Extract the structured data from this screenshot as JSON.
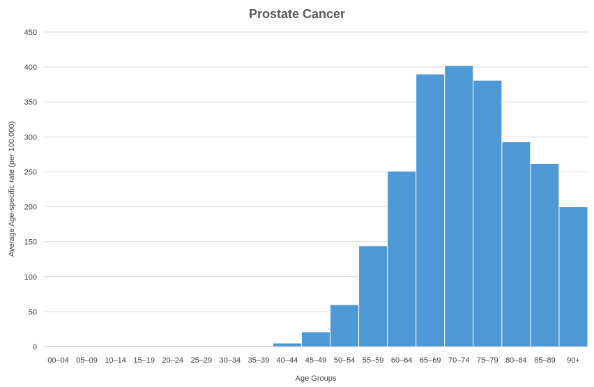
{
  "chart_data": {
    "type": "bar",
    "title": "Prostate Cancer",
    "xlabel": "Age Groups",
    "ylabel": "Average Age-specific rate (per 100,000)",
    "ylim": [
      0,
      450
    ],
    "yticks": [
      0,
      50,
      100,
      150,
      200,
      250,
      300,
      350,
      400,
      450
    ],
    "grid": true,
    "legend": "none",
    "bar_color": "#4e98d6",
    "categories": [
      "00–04",
      "05–09",
      "10–14",
      "15–19",
      "20–24",
      "25–29",
      "30–34",
      "35–39",
      "40–44",
      "45–49",
      "50–54",
      "55–59",
      "60–64",
      "65–69",
      "70–74",
      "75–79",
      "80–84",
      "85–89",
      "90+"
    ],
    "values": [
      0,
      0,
      0,
      0,
      0,
      0,
      0,
      0.5,
      5,
      21,
      60,
      144,
      251,
      390,
      402,
      381,
      293,
      262,
      200
    ]
  }
}
